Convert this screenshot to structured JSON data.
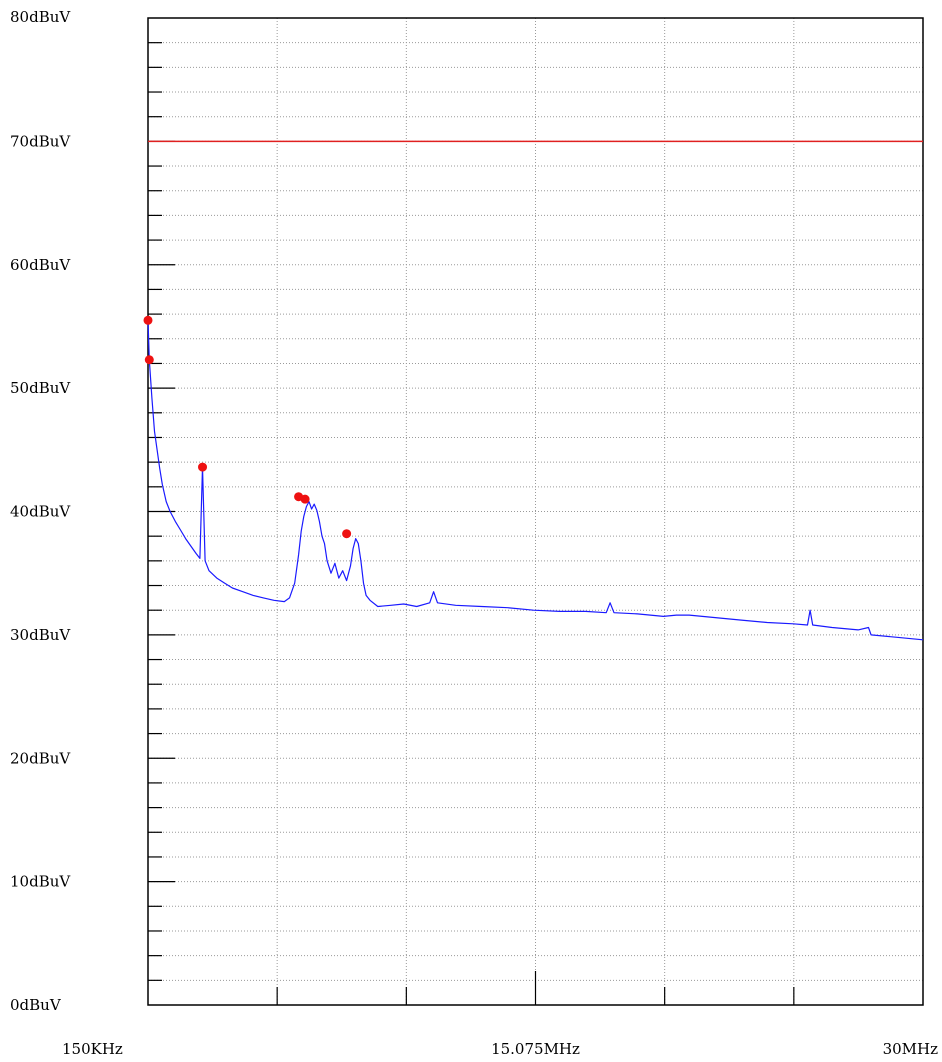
{
  "chart_data": {
    "type": "line",
    "title": "",
    "xlabel": "",
    "ylabel": "",
    "x_unit": "MHz",
    "xlim": [
      0.15,
      30
    ],
    "ylim": [
      0,
      80
    ],
    "y_tick_labels": [
      "0dBuV",
      "10dBuV",
      "20dBuV",
      "30dBuV",
      "40dBuV",
      "50dBuV",
      "60dBuV",
      "70dBuV",
      "80dBuV"
    ],
    "y_tick_values": [
      0,
      10,
      20,
      30,
      40,
      50,
      60,
      70,
      80
    ],
    "x_tick_labels": [
      {
        "value": 0.15,
        "label": "150KHz"
      },
      {
        "value": 15.075,
        "label": "15.075MHz"
      },
      {
        "value": 30,
        "label": "30MHz"
      }
    ],
    "x_grid_values": [
      0.15,
      5.125,
      10.1,
      15.075,
      20.05,
      25.025,
      30
    ],
    "grid": true,
    "limit_line": {
      "value": 70,
      "color": "#e02020"
    },
    "series": [
      {
        "color": "#1a1aff",
        "points": [
          [
            0.15,
            55.5
          ],
          [
            0.2,
            52.3
          ],
          [
            0.3,
            49.2
          ],
          [
            0.4,
            46.5
          ],
          [
            0.5,
            45.0
          ],
          [
            0.6,
            43.5
          ],
          [
            0.7,
            42.2
          ],
          [
            0.85,
            40.8
          ],
          [
            1.0,
            40.0
          ],
          [
            1.2,
            39.2
          ],
          [
            1.4,
            38.5
          ],
          [
            1.6,
            37.8
          ],
          [
            1.8,
            37.2
          ],
          [
            2.0,
            36.6
          ],
          [
            2.15,
            36.2
          ],
          [
            2.25,
            43.6
          ],
          [
            2.35,
            36.0
          ],
          [
            2.5,
            35.2
          ],
          [
            2.8,
            34.6
          ],
          [
            3.1,
            34.2
          ],
          [
            3.4,
            33.8
          ],
          [
            3.8,
            33.5
          ],
          [
            4.2,
            33.2
          ],
          [
            4.6,
            33.0
          ],
          [
            5.0,
            32.8
          ],
          [
            5.4,
            32.7
          ],
          [
            5.6,
            33.0
          ],
          [
            5.8,
            34.2
          ],
          [
            5.95,
            36.5
          ],
          [
            6.05,
            38.4
          ],
          [
            6.15,
            39.6
          ],
          [
            6.25,
            40.4
          ],
          [
            6.35,
            40.8
          ],
          [
            6.45,
            40.2
          ],
          [
            6.55,
            40.6
          ],
          [
            6.65,
            40.1
          ],
          [
            6.75,
            39.2
          ],
          [
            6.85,
            38.0
          ],
          [
            6.95,
            37.4
          ],
          [
            7.05,
            36.0
          ],
          [
            7.2,
            35.0
          ],
          [
            7.35,
            35.8
          ],
          [
            7.5,
            34.6
          ],
          [
            7.65,
            35.2
          ],
          [
            7.8,
            34.4
          ],
          [
            7.95,
            35.6
          ],
          [
            8.05,
            37.0
          ],
          [
            8.15,
            37.8
          ],
          [
            8.25,
            37.4
          ],
          [
            8.35,
            36.0
          ],
          [
            8.45,
            34.2
          ],
          [
            8.55,
            33.2
          ],
          [
            8.7,
            32.8
          ],
          [
            9.0,
            32.3
          ],
          [
            9.5,
            32.4
          ],
          [
            10.0,
            32.5
          ],
          [
            10.5,
            32.3
          ],
          [
            11.0,
            32.6
          ],
          [
            11.15,
            33.5
          ],
          [
            11.3,
            32.6
          ],
          [
            12.0,
            32.4
          ],
          [
            13.0,
            32.3
          ],
          [
            14.0,
            32.2
          ],
          [
            15.0,
            32.0
          ],
          [
            16.0,
            31.9
          ],
          [
            17.0,
            31.9
          ],
          [
            17.8,
            31.8
          ],
          [
            17.95,
            32.6
          ],
          [
            18.1,
            31.8
          ],
          [
            19.0,
            31.7
          ],
          [
            20.0,
            31.5
          ],
          [
            20.5,
            31.6
          ],
          [
            21.0,
            31.6
          ],
          [
            22.0,
            31.4
          ],
          [
            23.0,
            31.2
          ],
          [
            24.0,
            31.0
          ],
          [
            25.0,
            30.9
          ],
          [
            25.55,
            30.8
          ],
          [
            25.65,
            32.0
          ],
          [
            25.75,
            30.8
          ],
          [
            26.5,
            30.6
          ],
          [
            27.5,
            30.4
          ],
          [
            27.9,
            30.6
          ],
          [
            28.0,
            30.0
          ],
          [
            29.0,
            29.8
          ],
          [
            30.0,
            29.6
          ]
        ]
      }
    ],
    "markers": [
      {
        "x": 0.15,
        "y": 55.5,
        "color": "#ee1111"
      },
      {
        "x": 0.2,
        "y": 52.3,
        "color": "#ee1111"
      },
      {
        "x": 2.25,
        "y": 43.6,
        "color": "#ee1111"
      },
      {
        "x": 5.95,
        "y": 41.2,
        "color": "#ee1111"
      },
      {
        "x": 6.2,
        "y": 41.0,
        "color": "#ee1111"
      },
      {
        "x": 7.8,
        "y": 38.2,
        "color": "#ee1111"
      }
    ]
  }
}
